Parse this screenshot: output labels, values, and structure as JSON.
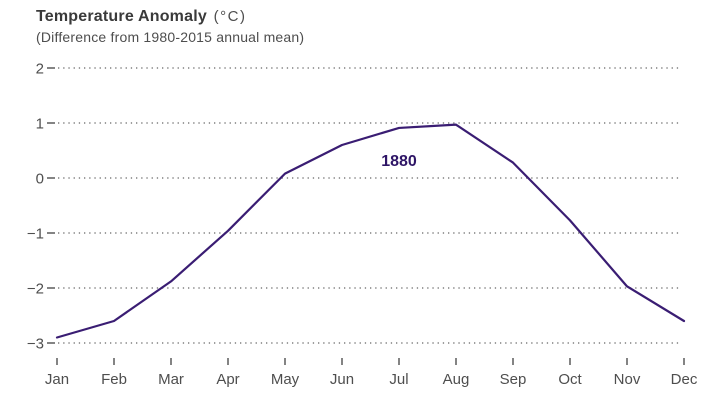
{
  "header": {
    "title": "Temperature Anomaly",
    "title_unit": "(°C)",
    "subtitle": "(Difference from 1980-2015 annual mean)"
  },
  "chart_data": {
    "type": "line",
    "title": "Temperature Anomaly (°C)",
    "subtitle": "(Difference from 1980-2015 annual mean)",
    "series_label": "1880",
    "categories": [
      "Jan",
      "Feb",
      "Mar",
      "Apr",
      "May",
      "Jun",
      "Jul",
      "Aug",
      "Sep",
      "Oct",
      "Nov",
      "Dec"
    ],
    "series": [
      {
        "name": "1880",
        "values": [
          -2.9,
          -2.6,
          -1.88,
          -0.96,
          0.08,
          0.6,
          0.91,
          0.97,
          0.28,
          -0.77,
          -1.97,
          -2.6
        ]
      }
    ],
    "ylim": [
      -3,
      2
    ],
    "yticks": [
      2,
      1,
      0,
      -1,
      -2,
      -3
    ],
    "ytick_labels": [
      "2",
      "1",
      "0",
      "−1",
      "−2",
      "−3"
    ],
    "grid": "horizontal-dotted",
    "legend_position": "inline-annotation",
    "colors": {
      "line": "#3a1d73",
      "series_label": "#2e1566",
      "axis_text": "#4e4e4e",
      "tick_mark": "#5a5a5a",
      "gridline": "#7f7f7f",
      "title": "#3a3a3a",
      "background": "#ffffff"
    }
  }
}
